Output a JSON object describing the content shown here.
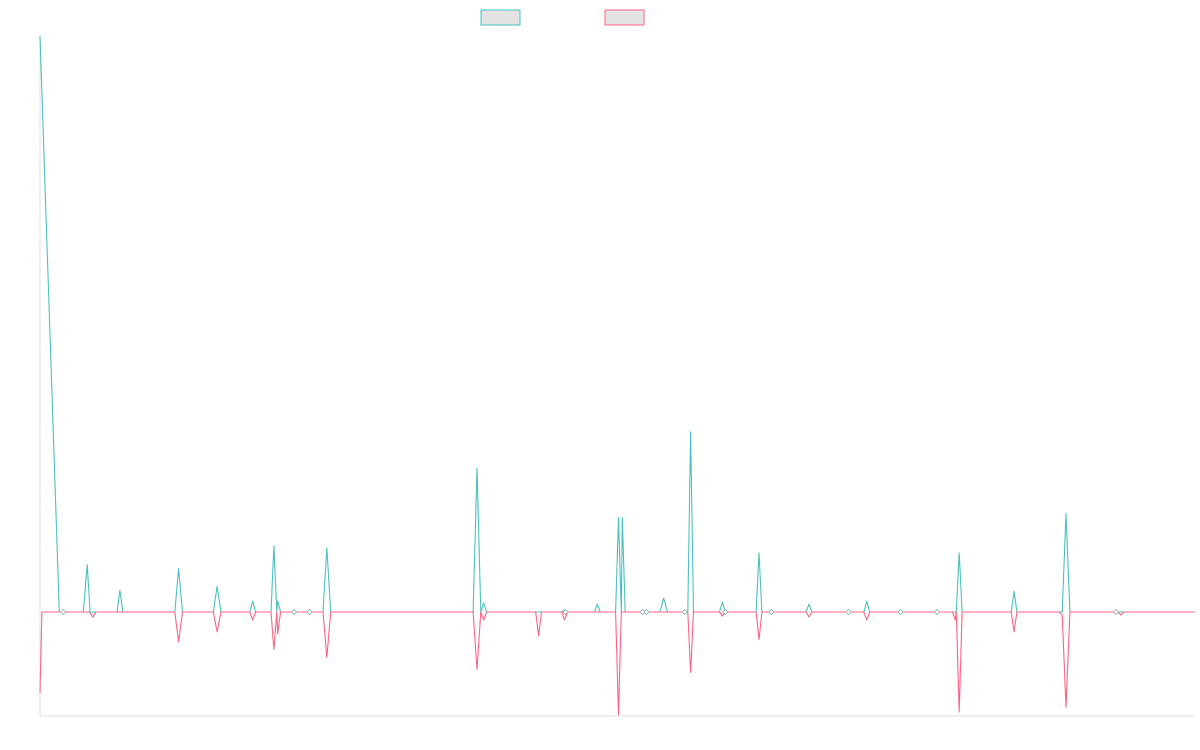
{
  "colors": {
    "series_a": "#4bc0c0",
    "series_a_fill": "#e3e3e3",
    "series_b": "#ff6384",
    "series_b_fill": "#e3e3e3",
    "axis": "#e0e0e0"
  },
  "chart_data": {
    "type": "line",
    "title": "",
    "xlabel": "",
    "ylabel": "",
    "legend_position": "top-center",
    "grid": false,
    "ylim": [
      -105,
      585
    ],
    "xlim": [
      0,
      1200
    ],
    "series": [
      {
        "color_key": "series_a",
        "points": [
          [
            0,
            585
          ],
          [
            20,
            0
          ],
          [
            45,
            0
          ],
          [
            49,
            48
          ],
          [
            52,
            0
          ],
          [
            80,
            0
          ],
          [
            83,
            22
          ],
          [
            86,
            0
          ],
          [
            140,
            0
          ],
          [
            144,
            44
          ],
          [
            148,
            0
          ],
          [
            180,
            0
          ],
          [
            184,
            26
          ],
          [
            188,
            0
          ],
          [
            218,
            0
          ],
          [
            221,
            11
          ],
          [
            224,
            0
          ],
          [
            240,
            0
          ],
          [
            243,
            67
          ],
          [
            246,
            0
          ],
          [
            247,
            11
          ],
          [
            250,
            0
          ],
          [
            294,
            0
          ],
          [
            298,
            65
          ],
          [
            302,
            0
          ],
          [
            450,
            0
          ],
          [
            454,
            146
          ],
          [
            458,
            0
          ],
          [
            461,
            9
          ],
          [
            464,
            0
          ],
          [
            542,
            0
          ],
          [
            545,
            2
          ],
          [
            548,
            0
          ],
          [
            576,
            0
          ],
          [
            579,
            8
          ],
          [
            582,
            0
          ],
          [
            598,
            0
          ],
          [
            601,
            96
          ],
          [
            604,
            0
          ],
          [
            605,
            96
          ],
          [
            608,
            0
          ],
          [
            644,
            0
          ],
          [
            648,
            14
          ],
          [
            652,
            0
          ],
          [
            673,
            0
          ],
          [
            676,
            183
          ],
          [
            679,
            0
          ],
          [
            706,
            0
          ],
          [
            709,
            10
          ],
          [
            712,
            0
          ],
          [
            744,
            0
          ],
          [
            747,
            60
          ],
          [
            750,
            0
          ],
          [
            796,
            0
          ],
          [
            799,
            8
          ],
          [
            802,
            0
          ],
          [
            856,
            0
          ],
          [
            859,
            11
          ],
          [
            862,
            0
          ],
          [
            952,
            0
          ],
          [
            955,
            60
          ],
          [
            958,
            0
          ],
          [
            1009,
            0
          ],
          [
            1012,
            21
          ],
          [
            1015,
            0
          ],
          [
            1062,
            0
          ],
          [
            1066,
            100
          ],
          [
            1070,
            0
          ],
          [
            1200,
            0
          ]
        ]
      },
      {
        "color_key": "series_b",
        "points": [
          [
            0,
            -82
          ],
          [
            2,
            0
          ],
          [
            51,
            0
          ],
          [
            55,
            -5
          ],
          [
            58,
            0
          ],
          [
            140,
            0
          ],
          [
            144,
            -30
          ],
          [
            148,
            0
          ],
          [
            180,
            0
          ],
          [
            184,
            -20
          ],
          [
            188,
            0
          ],
          [
            218,
            0
          ],
          [
            221,
            -8
          ],
          [
            224,
            0
          ],
          [
            240,
            0
          ],
          [
            243,
            -38
          ],
          [
            246,
            0
          ],
          [
            247,
            -22
          ],
          [
            250,
            0
          ],
          [
            294,
            0
          ],
          [
            298,
            -46
          ],
          [
            302,
            0
          ],
          [
            450,
            0
          ],
          [
            454,
            -58
          ],
          [
            458,
            0
          ],
          [
            461,
            -8
          ],
          [
            464,
            0
          ],
          [
            515,
            0
          ],
          [
            518,
            -24
          ],
          [
            521,
            0
          ],
          [
            542,
            0
          ],
          [
            545,
            -8
          ],
          [
            548,
            0
          ],
          [
            598,
            0
          ],
          [
            601,
            -104
          ],
          [
            604,
            0
          ],
          [
            673,
            0
          ],
          [
            676,
            -61
          ],
          [
            679,
            0
          ],
          [
            706,
            0
          ],
          [
            709,
            -4
          ],
          [
            712,
            0
          ],
          [
            744,
            0
          ],
          [
            747,
            -28
          ],
          [
            750,
            0
          ],
          [
            796,
            0
          ],
          [
            799,
            -5
          ],
          [
            802,
            0
          ],
          [
            856,
            0
          ],
          [
            859,
            -8
          ],
          [
            862,
            0
          ],
          [
            948,
            0
          ],
          [
            951,
            -8
          ],
          [
            952,
            0
          ],
          [
            955,
            -101
          ],
          [
            958,
            0
          ],
          [
            1009,
            0
          ],
          [
            1012,
            -20
          ],
          [
            1015,
            0
          ],
          [
            1059,
            0
          ],
          [
            1062,
            -3
          ],
          [
            1066,
            -96
          ],
          [
            1070,
            0
          ],
          [
            1120,
            0
          ],
          [
            1123,
            -3
          ],
          [
            1126,
            0
          ],
          [
            1200,
            0
          ]
        ]
      }
    ],
    "markers_x": [
      24,
      280,
      264,
      546,
      630,
      626,
      670,
      712,
      760,
      840,
      894,
      932,
      1118
    ]
  }
}
